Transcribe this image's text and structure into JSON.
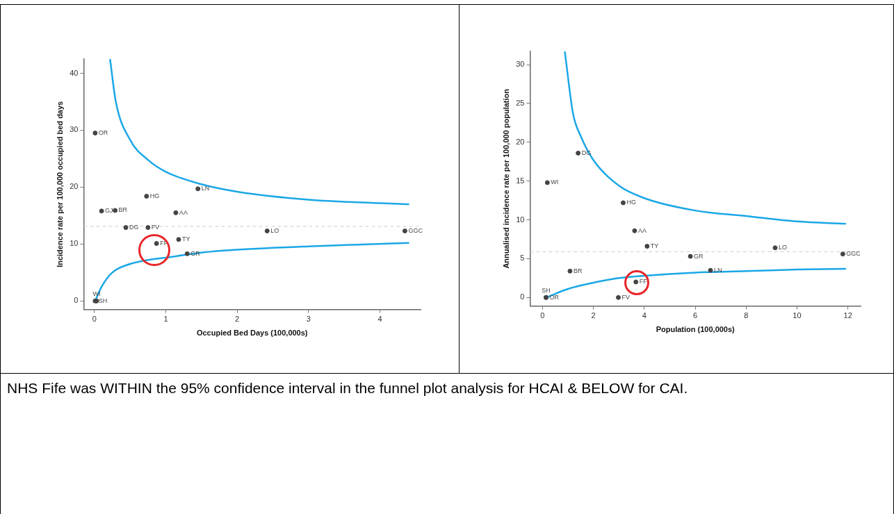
{
  "chart_data": [
    {
      "type": "scatter",
      "xlabel": "Occupied Bed Days (100,000s)",
      "ylabel": "Incidence rate per 100,000 occupied bed days",
      "xlim": [
        -0.15,
        4.57
      ],
      "ylim": [
        -1.5,
        42.5
      ],
      "xticks": [
        0,
        1,
        2,
        3,
        4
      ],
      "yticks": [
        0,
        10,
        20,
        30,
        40
      ],
      "grid": false,
      "legend": false,
      "ref_lines": [
        {
          "axis": "y",
          "value": 13.1,
          "color": "#cccccc",
          "line_style": "dashed"
        }
      ],
      "series": [
        {
          "type": "scatter",
          "marker": "circle",
          "color": "#444444",
          "x": [
            0.01,
            0.1,
            0.29,
            0.73,
            1.45,
            1.14,
            0.44,
            0.75,
            2.42,
            4.35,
            1.18,
            0.87,
            1.3,
            0.01,
            0.03
          ],
          "values": [
            29.5,
            15.8,
            15.9,
            18.4,
            19.7,
            15.5,
            12.9,
            12.9,
            12.3,
            12.3,
            10.8,
            10.1,
            8.3,
            0,
            0
          ],
          "value_labels": [
            "OR",
            "GJ",
            "BR",
            "HG",
            "LN",
            "AA",
            "DG",
            "FV",
            "LO",
            "GGC",
            "TY",
            "FF",
            "GR",
            "SH",
            "WI"
          ]
        },
        {
          "type": "line",
          "color": "#1aa7e6",
          "x": [
            0.22,
            0.3,
            0.5,
            0.75,
            1,
            1.5,
            2,
            3,
            4.4
          ],
          "values": [
            42.4,
            35,
            28.3,
            24.8,
            22.7,
            20.5,
            19.2,
            17.8,
            17.0
          ]
        },
        {
          "type": "line",
          "color": "#1aa7e6",
          "x": [
            0.01,
            0.1,
            0.25,
            0.5,
            0.85,
            1,
            1.5,
            2,
            3,
            4.4
          ],
          "values": [
            0,
            2.5,
            5.0,
            6.5,
            7.4,
            7.6,
            8.5,
            9.0,
            9.6,
            10.2
          ]
        }
      ]
    },
    {
      "type": "scatter",
      "xlabel": "Population (100,000s)",
      "ylabel": "Annualised incidence rate per 100,000 population",
      "xlim": [
        -0.49,
        12.5
      ],
      "ylim": [
        -1.1,
        31.7
      ],
      "xticks": [
        0,
        2,
        4,
        6,
        8,
        10,
        12
      ],
      "yticks": [
        0,
        5,
        10,
        15,
        20,
        25,
        30
      ],
      "grid": false,
      "legend": false,
      "ref_lines": [
        {
          "axis": "y",
          "value": 5.9,
          "color": "#cccccc",
          "line_style": "dashed"
        }
      ],
      "series": [
        {
          "type": "scatter",
          "marker": "circle",
          "color": "#444444",
          "x": [
            1.4,
            0.19,
            3.17,
            3.62,
            4.11,
            9.14,
            5.81,
            11.8,
            1.08,
            6.6,
            3.67,
            2.98,
            0.14,
            0.14
          ],
          "values": [
            18.6,
            14.8,
            12.2,
            8.6,
            6.6,
            6.4,
            5.3,
            5.6,
            3.4,
            3.5,
            2.0,
            0,
            0,
            0
          ],
          "value_labels": [
            "DG",
            "WI",
            "HG",
            "AA",
            "TY",
            "LO",
            "GR",
            "GGC",
            "BR",
            "LN",
            "FF",
            "FV",
            "OR",
            "SH"
          ]
        },
        {
          "type": "line",
          "color": "#1aa7e6",
          "x": [
            0.88,
            1.2,
            1.5,
            2,
            3,
            4,
            6,
            8,
            10,
            11.9
          ],
          "values": [
            31.6,
            23.7,
            20.8,
            17.7,
            14.4,
            12.8,
            11.2,
            10.5,
            9.8,
            9.5
          ]
        },
        {
          "type": "line",
          "color": "#1aa7e6",
          "x": [
            0.22,
            1,
            2,
            3,
            4,
            6,
            8,
            10,
            11.9
          ],
          "values": [
            0.1,
            1.1,
            1.9,
            2.5,
            2.8,
            3.2,
            3.4,
            3.6,
            3.7
          ]
        }
      ]
    },
    {
      "type": "other",
      "annotations": [
        "NHS Fife was WITHIN the 95% confidence interval in the funnel plot analysis for HCAI & BELOW for CAI."
      ]
    }
  ]
}
